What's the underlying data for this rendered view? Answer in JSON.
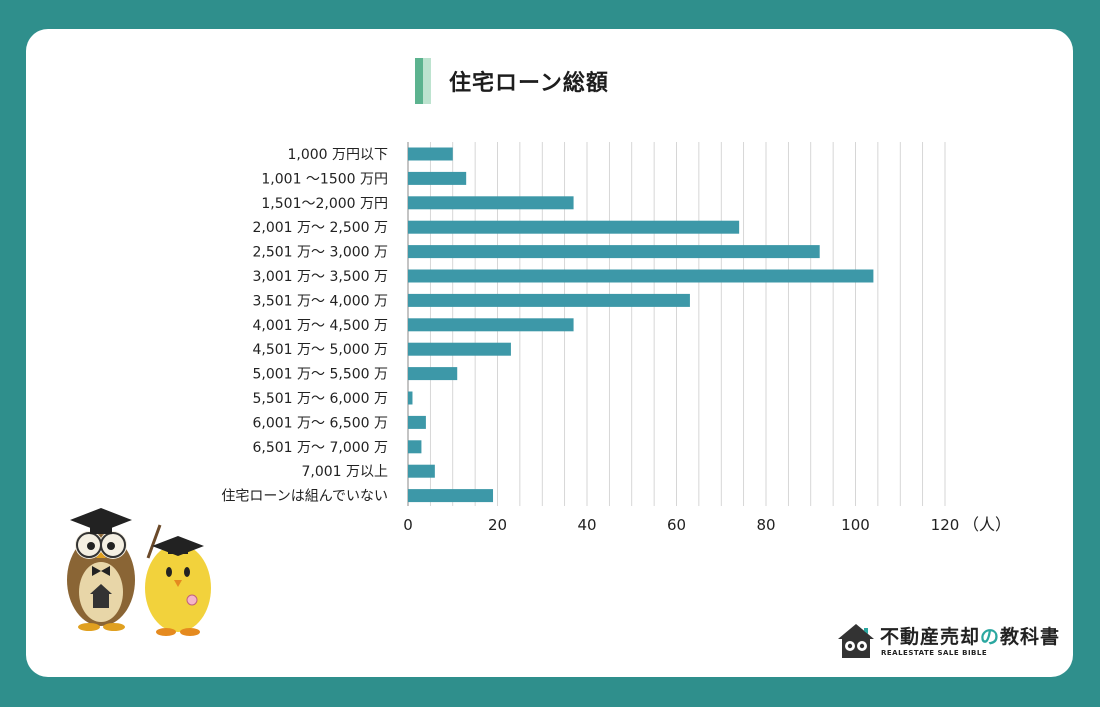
{
  "colors": {
    "background": "#2f8f8c",
    "card": "#ffffff",
    "bar": "#3d98a8",
    "gridline": "#cccccc",
    "title_accent_dark": "#5cb38f",
    "title_accent_light": "#bde3cf",
    "logo_teal": "#2aa7a0"
  },
  "header": {
    "title": "住宅ローン総額"
  },
  "chart_data": {
    "type": "bar",
    "orientation": "horizontal",
    "title": "住宅ローン総額",
    "categories": [
      "1,000 万円以下",
      "1,001 〜1500 万円",
      "1,501〜2,000 万円",
      "2,001 万〜 2,500 万",
      "2,501 万〜 3,000 万",
      "3,001 万〜 3,500 万",
      "3,501 万〜 4,000 万",
      "4,001 万〜 4,500 万",
      "4,501 万〜 5,000 万",
      "5,001 万〜 5,500 万",
      "5,501 万〜 6,000 万",
      "6,001 万〜 6,500 万",
      "6,501 万〜 7,000 万",
      "7,001 万以上",
      "住宅ローンは組んでいない"
    ],
    "values": [
      10,
      13,
      37,
      74,
      92,
      104,
      63,
      37,
      23,
      11,
      1,
      4,
      3,
      6,
      19
    ],
    "xlim": [
      0,
      120
    ],
    "xticks": [
      "0",
      "20",
      "40",
      "60",
      "80",
      "100",
      "120"
    ],
    "x_unit": "（人）",
    "grid": "vertical"
  },
  "logo": {
    "text_before": "不動産売却",
    "text_highlight": "の",
    "text_after": "教科書",
    "subtitle": "REALESTATE SALE BIBLE",
    "icon": "house-glasses-icon"
  },
  "illustration": {
    "icon": "owl-and-chick-mascots"
  }
}
